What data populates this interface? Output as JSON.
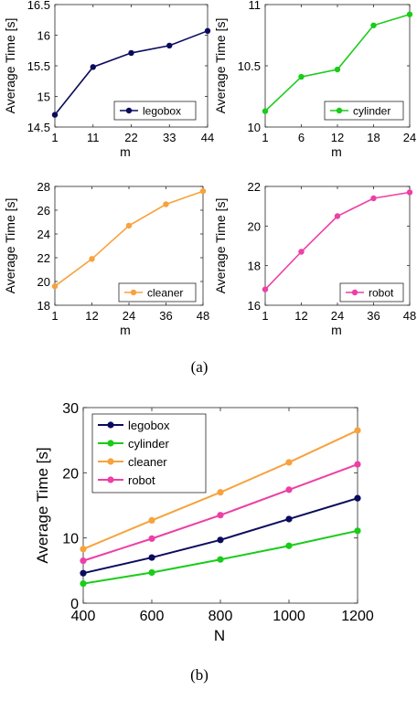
{
  "captions": {
    "a": "(a)",
    "b": "(b)"
  },
  "chart_data": [
    {
      "type": "line",
      "panel": "a-top-left",
      "xlabel": "m",
      "ylabel": "Average Time [s]",
      "categories": [
        "1",
        "11",
        "22",
        "33",
        "44"
      ],
      "ylim": [
        14.5,
        16.5
      ],
      "yticks": [
        "14.5",
        "15",
        "15.5",
        "16",
        "16.5"
      ],
      "grid": false,
      "legend": "bottom-right",
      "series": [
        {
          "name": "legobox",
          "color": "#0b0b5e",
          "values": [
            14.7,
            15.48,
            15.71,
            15.83,
            16.07
          ]
        }
      ]
    },
    {
      "type": "line",
      "panel": "a-top-right",
      "xlabel": "m",
      "ylabel": "Average Time [s]",
      "categories": [
        "1",
        "6",
        "12",
        "18",
        "24"
      ],
      "ylim": [
        10,
        11
      ],
      "yticks": [
        "10",
        "10.5",
        "11"
      ],
      "grid": false,
      "legend": "bottom-right",
      "series": [
        {
          "name": "cylinder",
          "color": "#19cc19",
          "values": [
            10.13,
            10.41,
            10.47,
            10.83,
            10.92
          ]
        }
      ]
    },
    {
      "type": "line",
      "panel": "a-bottom-left",
      "xlabel": "m",
      "ylabel": "Average Time [s]",
      "categories": [
        "1",
        "12",
        "24",
        "36",
        "48"
      ],
      "ylim": [
        18,
        28
      ],
      "yticks": [
        "18",
        "20",
        "22",
        "24",
        "26",
        "28"
      ],
      "grid": false,
      "legend": "bottom-right",
      "series": [
        {
          "name": "cleaner",
          "color": "#f7a23c",
          "values": [
            19.6,
            21.9,
            24.7,
            26.5,
            27.6
          ]
        }
      ]
    },
    {
      "type": "line",
      "panel": "a-bottom-right",
      "xlabel": "m",
      "ylabel": "Average Time [s]",
      "categories": [
        "1",
        "12",
        "24",
        "36",
        "48"
      ],
      "ylim": [
        16,
        22
      ],
      "yticks": [
        "16",
        "18",
        "20",
        "22"
      ],
      "grid": false,
      "legend": "bottom-right",
      "series": [
        {
          "name": "robot",
          "color": "#ed3fa5",
          "values": [
            16.8,
            18.7,
            20.5,
            21.4,
            21.7
          ]
        }
      ]
    },
    {
      "type": "line",
      "panel": "b",
      "xlabel": "N",
      "ylabel": "Average Time [s]",
      "x": [
        400,
        600,
        800,
        1000,
        1200
      ],
      "xlim": [
        400,
        1200
      ],
      "xticks": [
        "400",
        "600",
        "800",
        "1000",
        "1200"
      ],
      "ylim": [
        0,
        30
      ],
      "yticks": [
        "0",
        "10",
        "20",
        "30"
      ],
      "grid": false,
      "legend": "top-left",
      "series": [
        {
          "name": "legobox",
          "color": "#0b0b5e",
          "values": [
            4.6,
            7.0,
            9.7,
            12.9,
            16.1
          ]
        },
        {
          "name": "cylinder",
          "color": "#19cc19",
          "values": [
            3.0,
            4.7,
            6.7,
            8.8,
            11.1
          ]
        },
        {
          "name": "cleaner",
          "color": "#f7a23c",
          "values": [
            8.3,
            12.7,
            17.0,
            21.6,
            26.5
          ]
        },
        {
          "name": "robot",
          "color": "#ed3fa5",
          "values": [
            6.5,
            9.9,
            13.5,
            17.4,
            21.3
          ]
        }
      ]
    }
  ]
}
